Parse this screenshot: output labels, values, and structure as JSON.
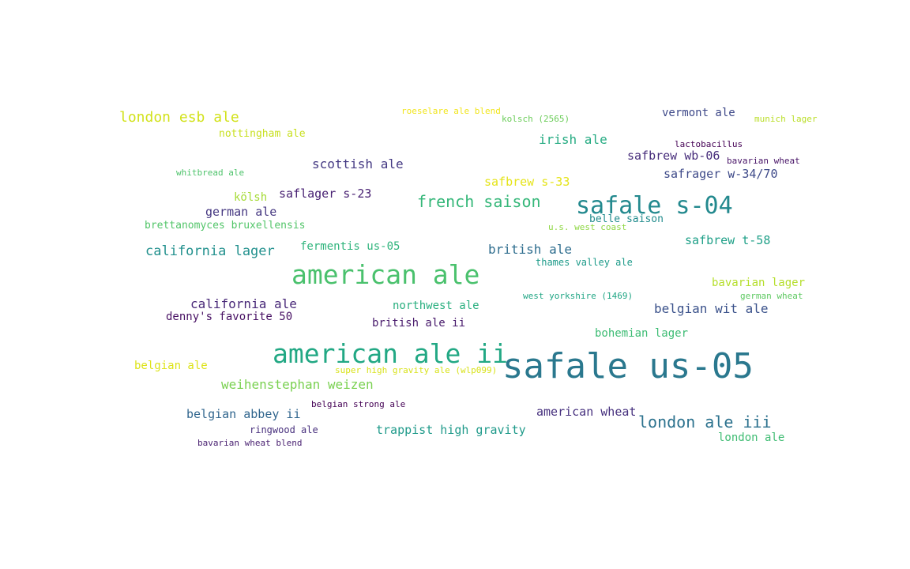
{
  "colors": {
    "background": "#ffffff",
    "palette": [
      "#440154",
      "#3b528b",
      "#21918c",
      "#5ec962",
      "#fde725"
    ]
  },
  "words": [
    {
      "text": "safale us-05",
      "color": "#2a788e"
    },
    {
      "text": "american ale",
      "color": "#4ac16d"
    },
    {
      "text": "american ale ii",
      "color": "#22a884"
    },
    {
      "text": "safale s-04",
      "color": "#23898e"
    },
    {
      "text": "french saison",
      "color": "#35b779"
    },
    {
      "text": "london ale iii",
      "color": "#2c728e"
    },
    {
      "text": "london esb ale",
      "color": "#d2e21b"
    },
    {
      "text": "california lager",
      "color": "#21908d"
    },
    {
      "text": "weihenstephan weizen",
      "color": "#7ad151"
    },
    {
      "text": "california ale",
      "color": "#482878"
    },
    {
      "text": "scottish ale",
      "color": "#443983"
    },
    {
      "text": "irish ale",
      "color": "#25ab82"
    },
    {
      "text": "british ale",
      "color": "#2e6d8e"
    },
    {
      "text": "belgian wit ale",
      "color": "#3b528b"
    },
    {
      "text": "safbrew wb-06",
      "color": "#472d7b"
    },
    {
      "text": "safbrew t-58",
      "color": "#1fa088"
    },
    {
      "text": "safbrew s-33",
      "color": "#e5e419"
    },
    {
      "text": "safrager w-34/70",
      "color": "#3e4a89"
    },
    {
      "text": "saflager s-23",
      "color": "#482173"
    },
    {
      "text": "german ale",
      "color": "#453781"
    },
    {
      "text": "belgian abbey ii",
      "color": "#31668e"
    },
    {
      "text": "american wheat",
      "color": "#46307e"
    },
    {
      "text": "trappist high gravity",
      "color": "#1f9a8a"
    },
    {
      "text": "fermentis us-05",
      "color": "#2fb47c"
    },
    {
      "text": "northwest ale",
      "color": "#29af7f"
    },
    {
      "text": "denny's favorite 50",
      "color": "#471063"
    },
    {
      "text": "belgian ale",
      "color": "#dde318"
    },
    {
      "text": "vermont ale",
      "color": "#3e4989"
    },
    {
      "text": "bavarian lager",
      "color": "#b5de2b"
    },
    {
      "text": "bohemian lager",
      "color": "#3dbc74"
    },
    {
      "text": "london ale",
      "color": "#3fbc73"
    },
    {
      "text": "british ale ii",
      "color": "#481a6c"
    },
    {
      "text": "kölsh",
      "color": "#a5db36"
    },
    {
      "text": "nottingham ale",
      "color": "#c8e020"
    },
    {
      "text": "brettanomyces bruxellensis",
      "color": "#52c569"
    },
    {
      "text": "belle saison",
      "color": "#228c8d"
    },
    {
      "text": "thames valley ale",
      "color": "#1e9b8a"
    },
    {
      "text": "ringwood ale",
      "color": "#472f7d"
    },
    {
      "text": "roeselare ale blend",
      "color": "#f1e51d"
    },
    {
      "text": "kolsch (2565)",
      "color": "#6ccd5a"
    },
    {
      "text": "munich lager",
      "color": "#bade28"
    },
    {
      "text": "lactobacillus",
      "color": "#440154"
    },
    {
      "text": "bavarian wheat",
      "color": "#481467"
    },
    {
      "text": "whitbread ale",
      "color": "#4ec36b"
    },
    {
      "text": "u.s. west coast",
      "color": "#8fd744"
    },
    {
      "text": "west yorkshire (1469)",
      "color": "#21a685"
    },
    {
      "text": "german wheat",
      "color": "#5ec962"
    },
    {
      "text": "super high gravity ale (wlp099)",
      "color": "#d8e219"
    },
    {
      "text": "belgian strong ale",
      "color": "#440154"
    },
    {
      "text": "bavarian wheat blend",
      "color": "#481f70"
    }
  ]
}
